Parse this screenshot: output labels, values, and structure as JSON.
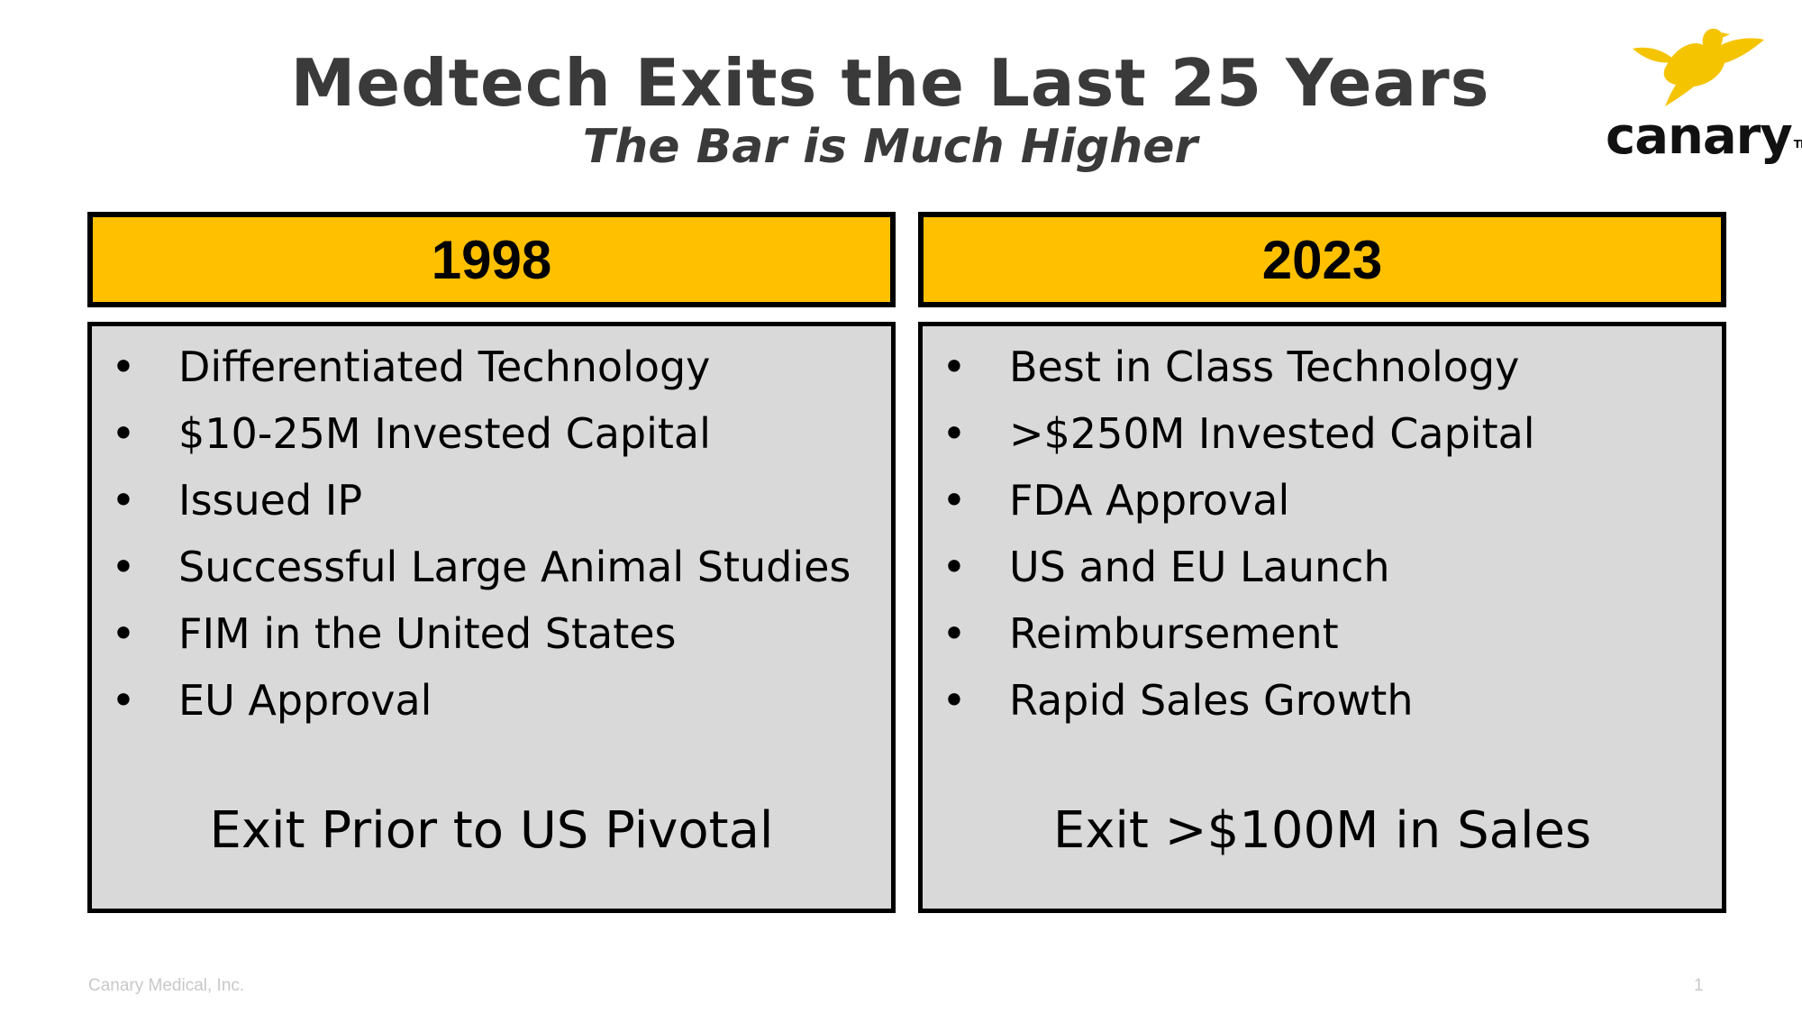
{
  "header": {
    "title": "Medtech Exits the Last 25 Years",
    "subtitle": "The Bar is Much Higher"
  },
  "logo": {
    "word": "canary",
    "tm": "TM",
    "icon": "canary-bird-icon",
    "color": "#f5c400"
  },
  "columns": [
    {
      "year": "1998",
      "bullets": [
        "Differentiated Technology",
        "$10-25M Invested Capital",
        "Issued IP",
        "Successful Large Animal Studies",
        "FIM in the United States",
        "EU Approval"
      ],
      "exit": "Exit Prior to US Pivotal"
    },
    {
      "year": "2023",
      "bullets": [
        "Best in Class Technology",
        ">$250M Invested Capital",
        "FDA Approval",
        "US and EU Launch",
        "Reimbursement",
        "Rapid Sales Growth"
      ],
      "exit": "Exit >$100M in Sales"
    }
  ],
  "footer": {
    "company": "Canary Medical, Inc.",
    "page": "1"
  },
  "colors": {
    "header_fill": "#ffc000",
    "box_fill": "#d9d9d9",
    "title": "#3a3a3a"
  }
}
